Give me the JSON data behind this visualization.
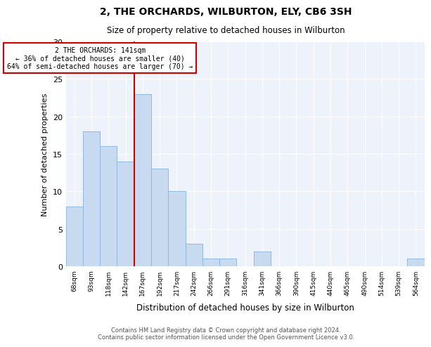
{
  "title": "2, THE ORCHARDS, WILBURTON, ELY, CB6 3SH",
  "subtitle": "Size of property relative to detached houses in Wilburton",
  "xlabel": "Distribution of detached houses by size in Wilburton",
  "ylabel": "Number of detached properties",
  "bar_color": "#c8daf0",
  "bar_edge_color": "#90b8de",
  "categories": [
    "68sqm",
    "93sqm",
    "118sqm",
    "142sqm",
    "167sqm",
    "192sqm",
    "217sqm",
    "242sqm",
    "266sqm",
    "291sqm",
    "316sqm",
    "341sqm",
    "366sqm",
    "390sqm",
    "415sqm",
    "440sqm",
    "465sqm",
    "490sqm",
    "514sqm",
    "539sqm",
    "564sqm"
  ],
  "values": [
    8,
    18,
    16,
    14,
    23,
    13,
    10,
    3,
    1,
    1,
    0,
    2,
    0,
    0,
    0,
    0,
    0,
    0,
    0,
    0,
    1
  ],
  "ylim": [
    0,
    30
  ],
  "yticks": [
    0,
    5,
    10,
    15,
    20,
    25,
    30
  ],
  "property_line_bar_index": 3,
  "property_line_label": "2 THE ORCHARDS: 141sqm",
  "annotation_line1": "← 36% of detached houses are smaller (40)",
  "annotation_line2": "64% of semi-detached houses are larger (70) →",
  "annotation_box_color": "#ffffff",
  "annotation_border_color": "#cc0000",
  "vline_color": "#cc0000",
  "background_color": "#eef2fa",
  "footer_line1": "Contains HM Land Registry data © Crown copyright and database right 2024.",
  "footer_line2": "Contains public sector information licensed under the Open Government Licence v3.0."
}
